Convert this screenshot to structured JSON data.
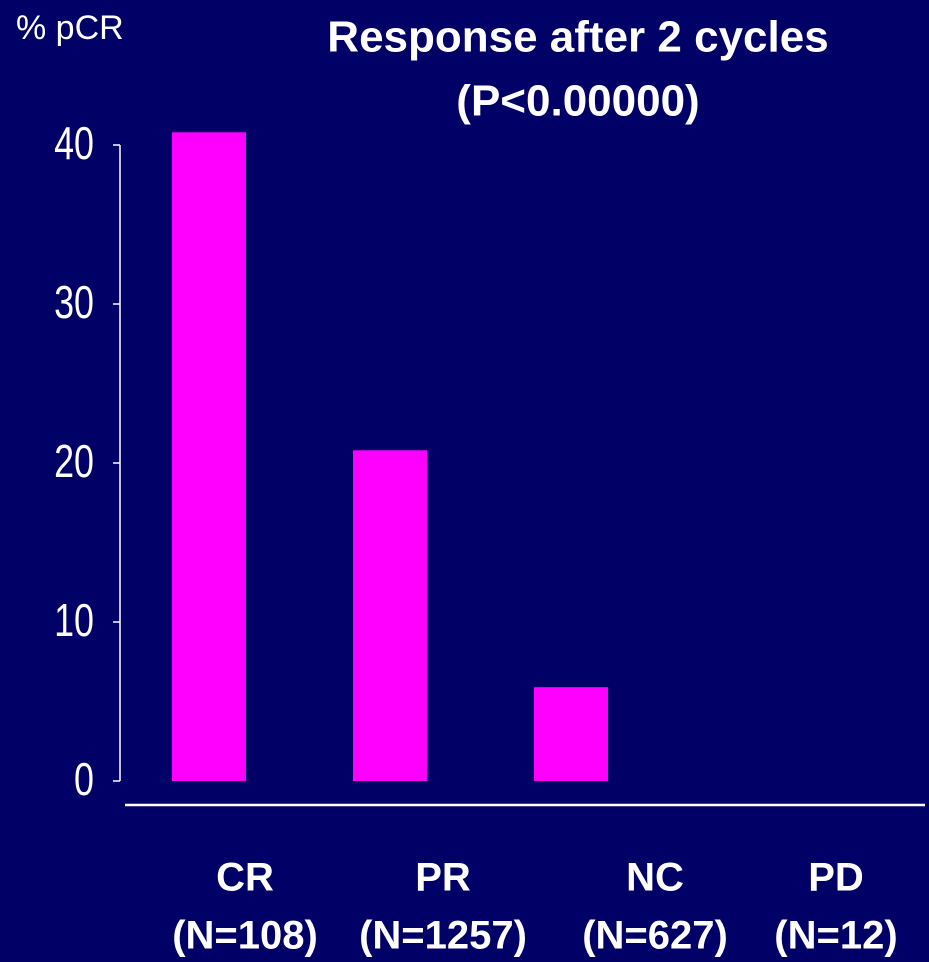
{
  "chart_data": {
    "type": "bar",
    "title": "Response after 2 cycles",
    "subtitle": "(P<0.00000)",
    "y_label": "% pCR",
    "categories": [
      "CR",
      "PR",
      "NC",
      "PD"
    ],
    "category_counts": [
      "(N=108)",
      "(N=1257)",
      "(N=627)",
      "(N=12)"
    ],
    "values": [
      40.8,
      20.8,
      5.9,
      0
    ],
    "color": "#ff00ff",
    "ylim": [
      0,
      40
    ],
    "yticks": [
      0,
      10,
      20,
      30,
      40
    ],
    "grid": false
  }
}
